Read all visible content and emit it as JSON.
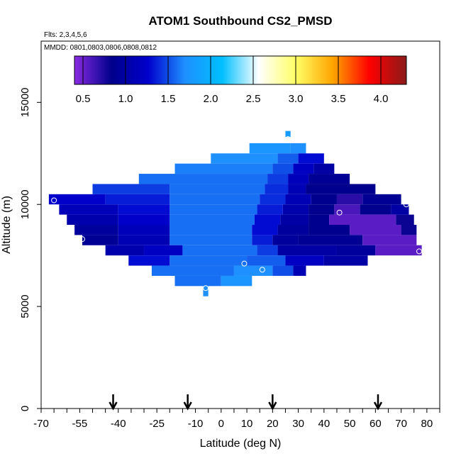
{
  "chart_data": {
    "type": "heatmap",
    "title": "ATOM1 Southbound CS2_PMSD",
    "flights_note": "Flts: 2,3,4,5,6",
    "dates_note": "MMDD: 0801,0803,0806,0808,0812",
    "xlabel": "Latitude (deg N)",
    "ylabel": "Altitude (m)",
    "xlim": [
      -70,
      85
    ],
    "ylim": [
      0,
      18000
    ],
    "x_tick_labels": [
      "-70",
      "-55",
      "-40",
      "-25",
      "-10",
      "0",
      "10",
      "20",
      "30",
      "40",
      "50",
      "60",
      "70",
      "80"
    ],
    "y_tick_labels": [
      "0",
      "5000",
      "10000",
      "15000"
    ],
    "colorbar": {
      "range": [
        0.4,
        4.3
      ],
      "ticks": [
        "0.5",
        "1.0",
        "1.5",
        "2.0",
        "2.5",
        "3.0",
        "3.5",
        "4.0"
      ],
      "colors": [
        "#8a2be2",
        "#00008b",
        "#0000cd",
        "#1e90ff",
        "#00bfff",
        "#ffffff",
        "#ffff66",
        "#ffa500",
        "#ff0000",
        "#8b1a1a"
      ]
    },
    "arrow_latitudes": [
      -42,
      -13,
      20,
      61
    ],
    "profile_points": [
      {
        "lat": -65,
        "alt": 10200
      },
      {
        "lat": -54,
        "alt": 8300
      },
      {
        "lat": -6,
        "alt": 5900
      },
      {
        "lat": 9,
        "alt": 7100
      },
      {
        "lat": 16,
        "alt": 6800
      },
      {
        "lat": 26,
        "alt": 13200
      },
      {
        "lat": 46,
        "alt": 9600
      },
      {
        "lat": 72,
        "alt": 10000
      },
      {
        "lat": 77,
        "alt": 7700
      }
    ],
    "rows": [
      {
        "alt_lo": 13300,
        "alt_hi": 13600,
        "lat_lo": 25,
        "lat_hi": 27,
        "cells": [
          [
            25,
            27,
            1.8
          ]
        ]
      },
      {
        "alt_lo": 12500,
        "alt_hi": 13000,
        "lat_lo": 11,
        "lat_hi": 33,
        "cells": [
          [
            11,
            27,
            1.75
          ],
          [
            27,
            33,
            1.7
          ]
        ]
      },
      {
        "alt_lo": 12000,
        "alt_hi": 12500,
        "lat_lo": -4,
        "lat_hi": 40,
        "cells": [
          [
            -4,
            22,
            1.7
          ],
          [
            22,
            30,
            1.55
          ],
          [
            30,
            40,
            1.3
          ]
        ]
      },
      {
        "alt_lo": 11500,
        "alt_hi": 12000,
        "lat_lo": -18,
        "lat_hi": 44,
        "cells": [
          [
            -18,
            20,
            1.65
          ],
          [
            20,
            28,
            1.5
          ],
          [
            28,
            36,
            1.2
          ],
          [
            36,
            44,
            1.0
          ]
        ]
      },
      {
        "alt_lo": 11000,
        "alt_hi": 11500,
        "lat_lo": -32,
        "lat_hi": 50,
        "cells": [
          [
            -32,
            18,
            1.6
          ],
          [
            18,
            26,
            1.45
          ],
          [
            26,
            34,
            1.15
          ],
          [
            34,
            50,
            0.9
          ]
        ]
      },
      {
        "alt_lo": 10500,
        "alt_hi": 11000,
        "lat_lo": -50,
        "lat_hi": 60,
        "cells": [
          [
            -50,
            -20,
            1.45
          ],
          [
            -20,
            17,
            1.6
          ],
          [
            17,
            26,
            1.4
          ],
          [
            26,
            33,
            1.1
          ],
          [
            33,
            60,
            0.85
          ]
        ]
      },
      {
        "alt_lo": 10000,
        "alt_hi": 10500,
        "lat_lo": -67,
        "lat_hi": 70,
        "cells": [
          [
            -67,
            -45,
            1.25
          ],
          [
            -45,
            -20,
            1.35
          ],
          [
            -20,
            15,
            1.6
          ],
          [
            15,
            25,
            1.4
          ],
          [
            25,
            35,
            1.1
          ],
          [
            35,
            45,
            0.85
          ],
          [
            45,
            55,
            0.7
          ],
          [
            55,
            70,
            0.9
          ]
        ]
      },
      {
        "alt_lo": 9500,
        "alt_hi": 10000,
        "lat_lo": -63,
        "lat_hi": 73,
        "cells": [
          [
            -63,
            -40,
            1.15
          ],
          [
            -40,
            -20,
            1.3
          ],
          [
            -20,
            14,
            1.6
          ],
          [
            14,
            24,
            1.35
          ],
          [
            24,
            34,
            1.05
          ],
          [
            34,
            44,
            0.85
          ],
          [
            44,
            54,
            0.6
          ],
          [
            54,
            66,
            0.85
          ],
          [
            66,
            73,
            1.0
          ]
        ]
      },
      {
        "alt_lo": 9000,
        "alt_hi": 9500,
        "lat_lo": -60,
        "lat_hi": 75,
        "cells": [
          [
            -60,
            -40,
            1.05
          ],
          [
            -40,
            -20,
            1.25
          ],
          [
            -20,
            13,
            1.6
          ],
          [
            13,
            23,
            1.3
          ],
          [
            23,
            34,
            1.0
          ],
          [
            34,
            42,
            0.85
          ],
          [
            42,
            68,
            0.55
          ],
          [
            68,
            75,
            0.8
          ]
        ]
      },
      {
        "alt_lo": 8500,
        "alt_hi": 9000,
        "lat_lo": -57,
        "lat_hi": 76,
        "cells": [
          [
            -57,
            -40,
            0.95
          ],
          [
            -40,
            -20,
            1.15
          ],
          [
            -20,
            12,
            1.6
          ],
          [
            12,
            22,
            1.3
          ],
          [
            22,
            34,
            0.95
          ],
          [
            34,
            50,
            0.85
          ],
          [
            50,
            70,
            0.55
          ],
          [
            70,
            76,
            0.8
          ]
        ]
      },
      {
        "alt_lo": 8000,
        "alt_hi": 8500,
        "lat_lo": -54,
        "lat_hi": 76,
        "cells": [
          [
            -54,
            -40,
            0.9
          ],
          [
            -40,
            -20,
            1.1
          ],
          [
            -20,
            12,
            1.6
          ],
          [
            12,
            20,
            1.35
          ],
          [
            20,
            30,
            0.95
          ],
          [
            30,
            55,
            0.9
          ],
          [
            55,
            76,
            0.55
          ]
        ]
      },
      {
        "alt_lo": 7500,
        "alt_hi": 8000,
        "lat_lo": -45,
        "lat_hi": 78,
        "cells": [
          [
            -45,
            -30,
            1.05
          ],
          [
            -30,
            -15,
            1.2
          ],
          [
            -15,
            14,
            1.6
          ],
          [
            14,
            22,
            1.45
          ],
          [
            22,
            45,
            1.0
          ],
          [
            45,
            60,
            0.95
          ],
          [
            60,
            78,
            0.55
          ]
        ]
      },
      {
        "alt_lo": 7000,
        "alt_hi": 7500,
        "lat_lo": -36,
        "lat_hi": 57,
        "cells": [
          [
            -36,
            -20,
            1.3
          ],
          [
            -20,
            10,
            1.6
          ],
          [
            10,
            25,
            1.55
          ],
          [
            25,
            40,
            1.2
          ],
          [
            40,
            57,
            1.0
          ]
        ]
      },
      {
        "alt_lo": 6500,
        "alt_hi": 7000,
        "lat_lo": -27,
        "lat_hi": 33,
        "cells": [
          [
            -27,
            5,
            1.6
          ],
          [
            5,
            20,
            1.7
          ],
          [
            20,
            28,
            1.5
          ],
          [
            28,
            33,
            1.1
          ]
        ]
      },
      {
        "alt_lo": 6000,
        "alt_hi": 6500,
        "lat_lo": -18,
        "lat_hi": 12,
        "cells": [
          [
            -18,
            0,
            1.6
          ],
          [
            0,
            12,
            1.75
          ]
        ]
      },
      {
        "alt_lo": 5500,
        "alt_hi": 6000,
        "lat_lo": -7,
        "lat_hi": -5,
        "cells": [
          [
            -7,
            -5,
            1.7
          ]
        ]
      }
    ]
  }
}
